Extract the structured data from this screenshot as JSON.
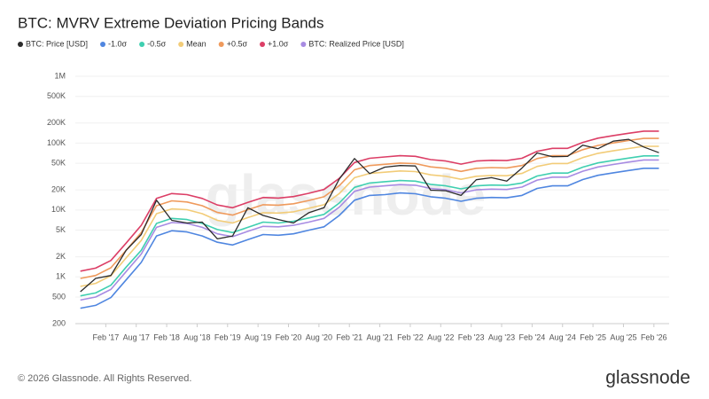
{
  "chart_data": {
    "type": "line",
    "title": "BTC: MVRV Extreme Deviation Pricing Bands",
    "log_scale": true,
    "grid": true,
    "legend_position": "top-left",
    "x": [
      "2016-09",
      "2016-12",
      "2017-03",
      "2017-06",
      "2017-09",
      "2017-12",
      "2018-03",
      "2018-06",
      "2018-09",
      "2018-12",
      "2019-03",
      "2019-06",
      "2019-09",
      "2019-12",
      "2020-03",
      "2020-06",
      "2020-09",
      "2020-12",
      "2021-03",
      "2021-06",
      "2021-09",
      "2021-12",
      "2022-03",
      "2022-06",
      "2022-09",
      "2022-12",
      "2023-03",
      "2023-06",
      "2023-09",
      "2023-12",
      "2024-03",
      "2024-06",
      "2024-09",
      "2024-12",
      "2025-03",
      "2025-06",
      "2025-09",
      "2025-12",
      "2026-03"
    ],
    "xlim": [
      "2016-08",
      "2026-05"
    ],
    "xticks": [
      {
        "value": "2017-02",
        "label": "Feb '17"
      },
      {
        "value": "2017-08",
        "label": "Aug '17"
      },
      {
        "value": "2018-02",
        "label": "Feb '18"
      },
      {
        "value": "2018-08",
        "label": "Aug '18"
      },
      {
        "value": "2019-02",
        "label": "Feb '19"
      },
      {
        "value": "2019-08",
        "label": "Aug '19"
      },
      {
        "value": "2020-02",
        "label": "Feb '20"
      },
      {
        "value": "2020-08",
        "label": "Aug '20"
      },
      {
        "value": "2021-02",
        "label": "Feb '21"
      },
      {
        "value": "2021-08",
        "label": "Aug '21"
      },
      {
        "value": "2022-02",
        "label": "Feb '22"
      },
      {
        "value": "2022-08",
        "label": "Aug '22"
      },
      {
        "value": "2023-02",
        "label": "Feb '23"
      },
      {
        "value": "2023-08",
        "label": "Aug '23"
      },
      {
        "value": "2024-02",
        "label": "Feb '24"
      },
      {
        "value": "2024-08",
        "label": "Aug '24"
      },
      {
        "value": "2025-02",
        "label": "Feb '25"
      },
      {
        "value": "2025-08",
        "label": "Aug '25"
      },
      {
        "value": "2026-02",
        "label": "Feb '26"
      }
    ],
    "ylim": [
      200,
      1000000
    ],
    "yticks": [
      200,
      500,
      {
        "value": 1000,
        "label": "1K"
      },
      {
        "value": 2000,
        "label": "2K"
      },
      {
        "value": 5000,
        "label": "5K"
      },
      {
        "value": 10000,
        "label": "10K"
      },
      {
        "value": 20000,
        "label": "20K"
      },
      {
        "value": 50000,
        "label": "50K"
      },
      {
        "value": 100000,
        "label": "100K"
      },
      {
        "value": 200000,
        "label": "200K"
      },
      {
        "value": 500000,
        "label": "500K"
      },
      {
        "value": 1000000,
        "label": "1M"
      }
    ],
    "series": [
      {
        "name": "BTC: Price [USD]",
        "color": "#2b2b2b",
        "values": [
          600,
          950,
          1050,
          2500,
          4300,
          14000,
          7000,
          6400,
          6600,
          3700,
          4100,
          10800,
          8300,
          7200,
          6400,
          9100,
          10800,
          29000,
          58800,
          35000,
          43800,
          46300,
          45500,
          19800,
          19400,
          16500,
          28400,
          30400,
          27000,
          42300,
          71300,
          62700,
          63300,
          93400,
          82500,
          107000,
          114000,
          87500,
          72000
        ]
      },
      {
        "name": "-1.0σ",
        "color": "#4f86e0",
        "values": [
          340,
          375,
          490,
          900,
          1650,
          4100,
          4900,
          4700,
          4100,
          3300,
          3000,
          3600,
          4300,
          4200,
          4400,
          5000,
          5600,
          8300,
          14000,
          16500,
          17000,
          18000,
          17500,
          15800,
          15000,
          13500,
          15000,
          15400,
          15200,
          16500,
          21000,
          23000,
          23000,
          28500,
          33000,
          36000,
          39000,
          42000,
          42000
        ]
      },
      {
        "name": "-0.5σ",
        "color": "#3fcfb0",
        "values": [
          520,
          575,
          750,
          1400,
          2500,
          6300,
          7500,
          7200,
          6300,
          5100,
          4600,
          5500,
          6600,
          6400,
          6800,
          7600,
          8600,
          12700,
          21800,
          25300,
          26500,
          27600,
          27000,
          24200,
          23000,
          20700,
          23000,
          23600,
          23300,
          25300,
          32200,
          35700,
          35700,
          43700,
          50600,
          55200,
          59800,
          64400,
          64400
        ]
      },
      {
        "name": "Mean",
        "color": "#f2cc78",
        "values": [
          720,
          800,
          1040,
          1920,
          3500,
          8800,
          10400,
          10100,
          8800,
          7000,
          6400,
          7700,
          9100,
          9000,
          9400,
          10600,
          12000,
          17600,
          30400,
          35200,
          36800,
          38400,
          37600,
          33600,
          32000,
          28800,
          32000,
          32800,
          32500,
          35200,
          44800,
          49600,
          49600,
          60800,
          70400,
          76800,
          83200,
          89600,
          89600
        ]
      },
      {
        "name": "+0.5σ",
        "color": "#ef9a5c",
        "values": [
          950,
          1050,
          1370,
          2500,
          4600,
          11600,
          13700,
          13200,
          11600,
          9200,
          8400,
          10100,
          12000,
          11800,
          12400,
          13900,
          15800,
          23100,
          39900,
          46200,
          48300,
          50400,
          49400,
          44100,
          42000,
          37800,
          42000,
          43100,
          42600,
          46200,
          58800,
          65100,
          65100,
          79800,
          92400,
          100800,
          109200,
          117600,
          117600
        ]
      },
      {
        "name": "+1.0σ",
        "color": "#dc3e66",
        "values": [
          1220,
          1350,
          1760,
          3200,
          5900,
          14900,
          17600,
          17000,
          14900,
          11900,
          10800,
          13000,
          15400,
          15100,
          15900,
          17800,
          20300,
          29700,
          51300,
          59400,
          62100,
          64800,
          63500,
          56700,
          54000,
          48600,
          54000,
          55400,
          54800,
          59400,
          75600,
          83700,
          83700,
          102600,
          118800,
          129600,
          140400,
          151200,
          151200
        ]
      },
      {
        "name": "BTC: Realized Price [USD]",
        "color": "#a78be2",
        "values": [
          450,
          500,
          650,
          1200,
          2200,
          5500,
          6500,
          6300,
          5500,
          4400,
          4000,
          4800,
          5700,
          5600,
          5900,
          6600,
          7500,
          11000,
          19000,
          22000,
          23000,
          24000,
          23500,
          21000,
          20000,
          18000,
          20000,
          20500,
          20300,
          22000,
          28000,
          31000,
          31000,
          38000,
          44000,
          48000,
          52000,
          56000,
          56000
        ]
      }
    ],
    "watermark": "glassnode",
    "footer": "© 2026 Glassnode. All Rights Reserved.",
    "logo": "glassnode"
  }
}
